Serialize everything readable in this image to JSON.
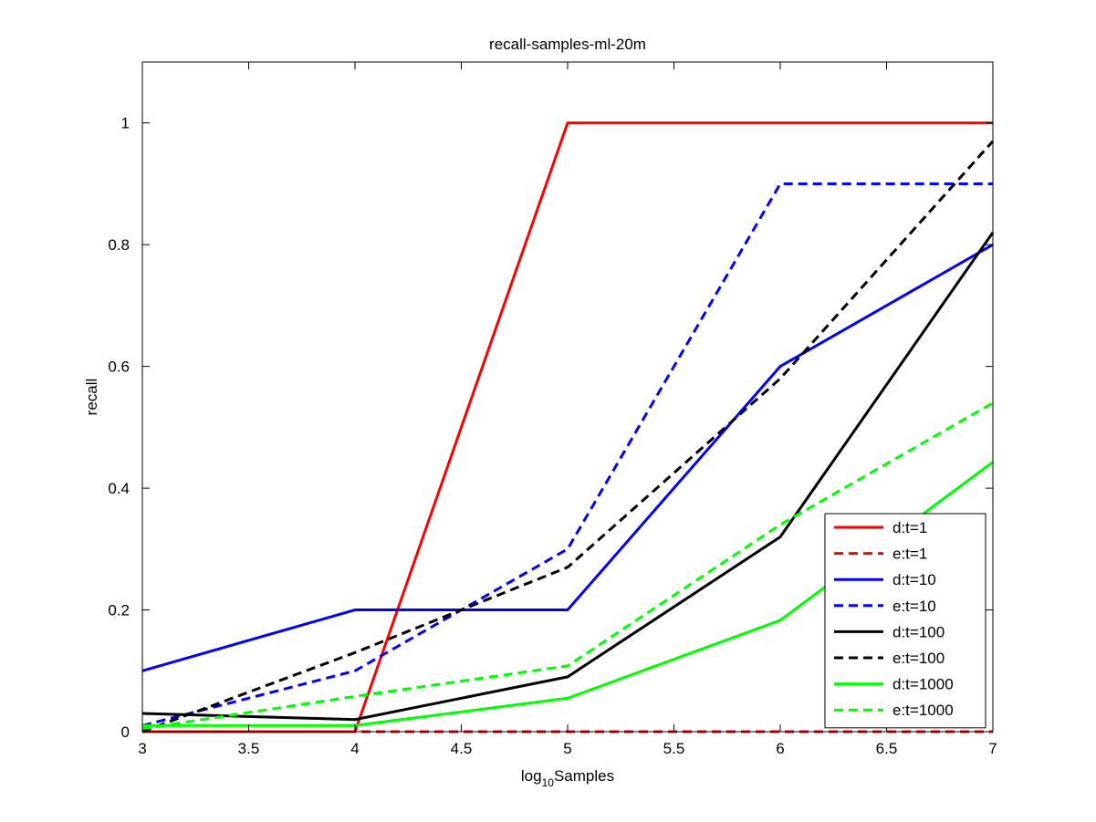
{
  "chart_data": {
    "type": "line",
    "title": "recall-samples-ml-20m",
    "xlabel_base": "log",
    "xlabel_sub": "10",
    "xlabel_rest": "Samples",
    "ylabel": "recall",
    "xlim": [
      3,
      7
    ],
    "ylim": [
      0,
      1.1
    ],
    "xticks": [
      "3",
      "3.5",
      "4",
      "4.5",
      "5",
      "5.5",
      "6",
      "6.5",
      "7"
    ],
    "yticks": [
      "0",
      "0.2",
      "0.4",
      "0.6",
      "0.8",
      "1"
    ],
    "grid": false,
    "legend_position": "bottom-right",
    "x": [
      3,
      4,
      5,
      6,
      7
    ],
    "series": [
      {
        "name": "d:t=1",
        "color": "#ff0000",
        "dash": "solid",
        "values": [
          0,
          0,
          1,
          1,
          1
        ]
      },
      {
        "name": "e:t=1",
        "color": "#ff0000",
        "dash": "dashed",
        "values": [
          0,
          0,
          0,
          0,
          0
        ]
      },
      {
        "name": "d:t=10",
        "color": "#0000ff",
        "dash": "solid",
        "values": [
          0.1,
          0.2,
          0.2,
          0.6,
          0.8
        ]
      },
      {
        "name": "e:t=10",
        "color": "#0000ff",
        "dash": "dashed",
        "values": [
          0.01,
          0.1,
          0.3,
          0.9,
          0.9
        ]
      },
      {
        "name": "d:t=100",
        "color": "#000000",
        "dash": "solid",
        "values": [
          0.03,
          0.02,
          0.09,
          0.32,
          0.82
        ]
      },
      {
        "name": "e:t=100",
        "color": "#000000",
        "dash": "dashed",
        "values": [
          0,
          0.13,
          0.27,
          0.58,
          0.97
        ]
      },
      {
        "name": "d:t=1000",
        "color": "#00ff00",
        "dash": "solid",
        "values": [
          0.01,
          0.01,
          0.055,
          0.183,
          0.443
        ]
      },
      {
        "name": "e:t=1000",
        "color": "#00ff00",
        "dash": "dashed",
        "values": [
          0.005,
          0.058,
          0.108,
          0.34,
          0.54
        ]
      }
    ]
  }
}
